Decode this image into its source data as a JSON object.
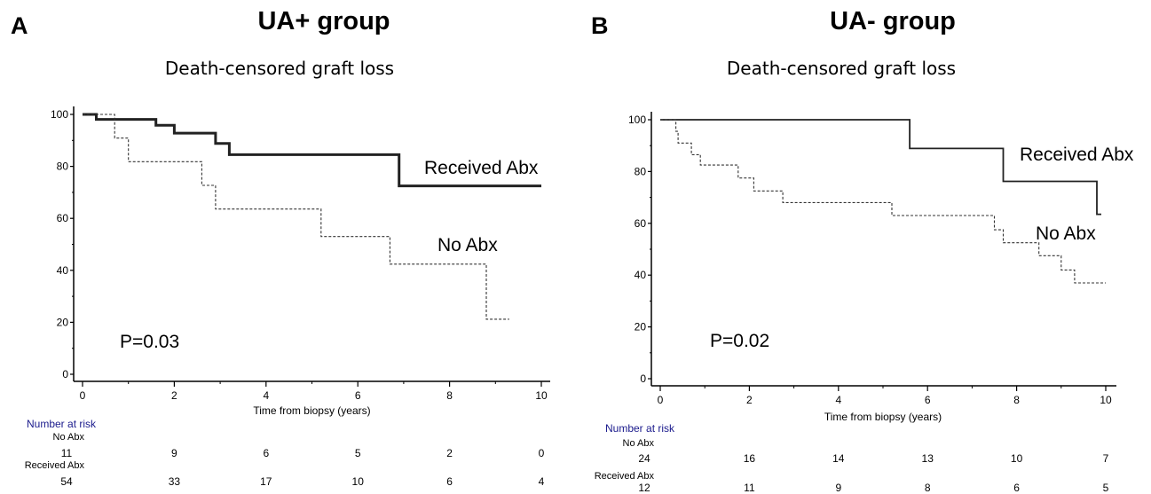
{
  "panels": [
    {
      "letter": "A",
      "title": "UA+ group",
      "subtitle": "Death-censored graft loss"
    },
    {
      "letter": "B",
      "title": "UA- group",
      "subtitle": "Death-censored graft loss"
    }
  ],
  "chart_data": [
    {
      "type": "line",
      "step": true,
      "title": "Death-censored graft loss",
      "xlabel": "Time from biopsy (years)",
      "ylabel": "",
      "xlim": [
        0,
        10
      ],
      "ylim": [
        0,
        100
      ],
      "xticks": [
        0,
        2,
        4,
        6,
        8,
        10
      ],
      "yticks": [
        0,
        20,
        40,
        60,
        80,
        100
      ],
      "annotation": "P=0.03",
      "series": [
        {
          "name": "Received Abx",
          "style": "solid-thick",
          "color": "#222222",
          "x": [
            0,
            0.3,
            0.3,
            1.6,
            1.6,
            2.0,
            2.0,
            2.9,
            2.9,
            3.2,
            3.2,
            6.9,
            6.9,
            10
          ],
          "y": [
            100,
            100,
            98.1,
            98.1,
            95.8,
            95.8,
            92.8,
            92.8,
            88.8,
            88.8,
            84.5,
            84.5,
            72.5,
            72.5
          ]
        },
        {
          "name": "No Abx",
          "style": "dashed",
          "color": "#333333",
          "x": [
            0,
            0.7,
            0.7,
            1.0,
            1.0,
            2.6,
            2.6,
            2.9,
            2.9,
            5.2,
            5.2,
            6.7,
            6.7,
            8.8,
            8.8,
            9.3
          ],
          "y": [
            100,
            100,
            90.9,
            90.9,
            81.8,
            81.8,
            72.7,
            72.7,
            63.6,
            63.6,
            53.0,
            53.0,
            42.4,
            42.4,
            21.2,
            21.2
          ]
        }
      ],
      "number_at_risk": {
        "heading": "Number at risk",
        "rows": [
          {
            "label": "No Abx",
            "values": [
              "11",
              "9",
              "6",
              "5",
              "2",
              "0"
            ]
          },
          {
            "label": "Received Abx",
            "values": [
              "54",
              "33",
              "17",
              "10",
              "6",
              "4"
            ]
          }
        ]
      }
    },
    {
      "type": "line",
      "step": true,
      "title": "Death-censored graft loss",
      "xlabel": "Time from biopsy (years)",
      "ylabel": "",
      "xlim": [
        0,
        10
      ],
      "ylim": [
        0,
        100
      ],
      "xticks": [
        0,
        2,
        4,
        6,
        8,
        10
      ],
      "yticks": [
        0,
        20,
        40,
        60,
        80,
        100
      ],
      "annotation": "P=0.02",
      "series": [
        {
          "name": "Received Abx",
          "style": "solid",
          "color": "#222222",
          "x": [
            0,
            5.6,
            5.6,
            7.7,
            7.7,
            9.8,
            9.8,
            9.9
          ],
          "y": [
            100,
            100,
            88.9,
            88.9,
            76.2,
            76.2,
            63.5,
            63.5
          ]
        },
        {
          "name": "No Abx",
          "style": "dashed",
          "color": "#333333",
          "x": [
            0,
            0.35,
            0.35,
            0.4,
            0.4,
            0.7,
            0.7,
            0.9,
            0.9,
            1.75,
            1.75,
            2.1,
            2.1,
            2.75,
            2.75,
            5.2,
            5.2,
            7.5,
            7.5,
            7.7,
            7.7,
            8.5,
            8.5,
            9.0,
            9.0,
            9.3,
            9.3,
            10
          ],
          "y": [
            100,
            100,
            95.5,
            95.5,
            91.0,
            91.0,
            86.5,
            86.5,
            82.5,
            82.5,
            77.5,
            77.5,
            72.5,
            72.5,
            68.0,
            68.0,
            63.0,
            63.0,
            57.5,
            57.5,
            52.5,
            52.5,
            47.5,
            47.5,
            42.0,
            42.0,
            37.0,
            37.0
          ]
        }
      ],
      "number_at_risk": {
        "heading": "Number at risk",
        "rows": [
          {
            "label": "No Abx",
            "values": [
              "24",
              "16",
              "14",
              "13",
              "10",
              "7"
            ]
          },
          {
            "label": "Received Abx",
            "values": [
              "12",
              "11",
              "9",
              "8",
              "6",
              "5"
            ]
          }
        ]
      }
    }
  ]
}
